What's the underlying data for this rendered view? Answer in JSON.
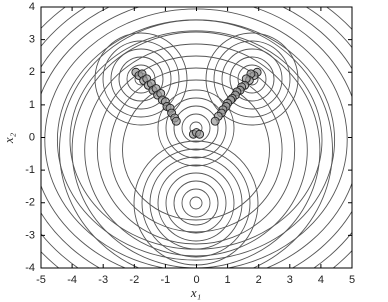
{
  "chart_data": {
    "type": "scatter",
    "x_label": "x₁",
    "y_label": "x₂",
    "xlim": [
      -5,
      5
    ],
    "ylim": [
      -4,
      4
    ],
    "xticks": [
      -5,
      -4,
      -3,
      -2,
      -1,
      0,
      1,
      2,
      3,
      4,
      5
    ],
    "yticks": [
      -4,
      -3,
      -2,
      -1,
      0,
      1,
      2,
      3,
      4
    ],
    "series": [
      {
        "color": "#9a9a9a",
        "x": [
          -1.95,
          -1.85,
          -1.75,
          -1.7,
          -1.6,
          -1.55,
          -1.45,
          -1.4,
          -1.3,
          -1.25,
          -1.15,
          -1.1,
          -1.0,
          -0.95,
          -0.85,
          -0.8,
          -0.7,
          -0.65,
          1.95,
          1.85,
          1.75,
          1.7,
          1.6,
          1.55,
          1.45,
          1.4,
          1.3,
          1.25,
          1.15,
          1.1,
          1.0,
          0.95,
          0.85,
          0.8,
          0.7,
          0.6,
          -0.1,
          0.0,
          0.1
        ],
        "y": [
          2.0,
          1.9,
          1.95,
          1.75,
          1.8,
          1.6,
          1.65,
          1.45,
          1.5,
          1.3,
          1.35,
          1.15,
          1.1,
          0.95,
          0.9,
          0.75,
          0.6,
          0.5,
          2.0,
          1.9,
          1.95,
          1.75,
          1.8,
          1.6,
          1.55,
          1.45,
          1.4,
          1.3,
          1.2,
          1.15,
          1.05,
          0.95,
          0.85,
          0.75,
          0.65,
          0.5,
          0.1,
          0.15,
          0.1
        ]
      }
    ]
  }
}
